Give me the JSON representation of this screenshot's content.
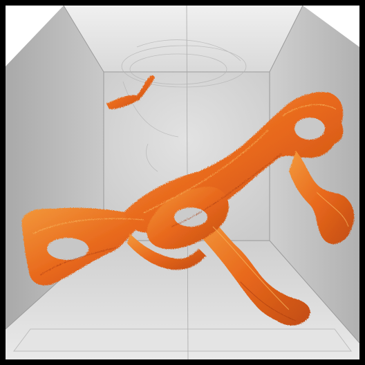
{
  "scene": {
    "subject": "orange-fibrous-sculpture-in-gray-box",
    "colors": {
      "frame_border": "#000000",
      "background_white": "#ffffff",
      "wall_back": "#d7d7d7",
      "wall_left": "#b8b8b8",
      "wall_right": "#c2c2c2",
      "ceiling": "#e6e6e6",
      "floor": "#d2d2d2",
      "sculpture_orange": "#e8681c",
      "sculpture_dark": "#b84410",
      "sculpture_light": "#f59a3a"
    }
  }
}
